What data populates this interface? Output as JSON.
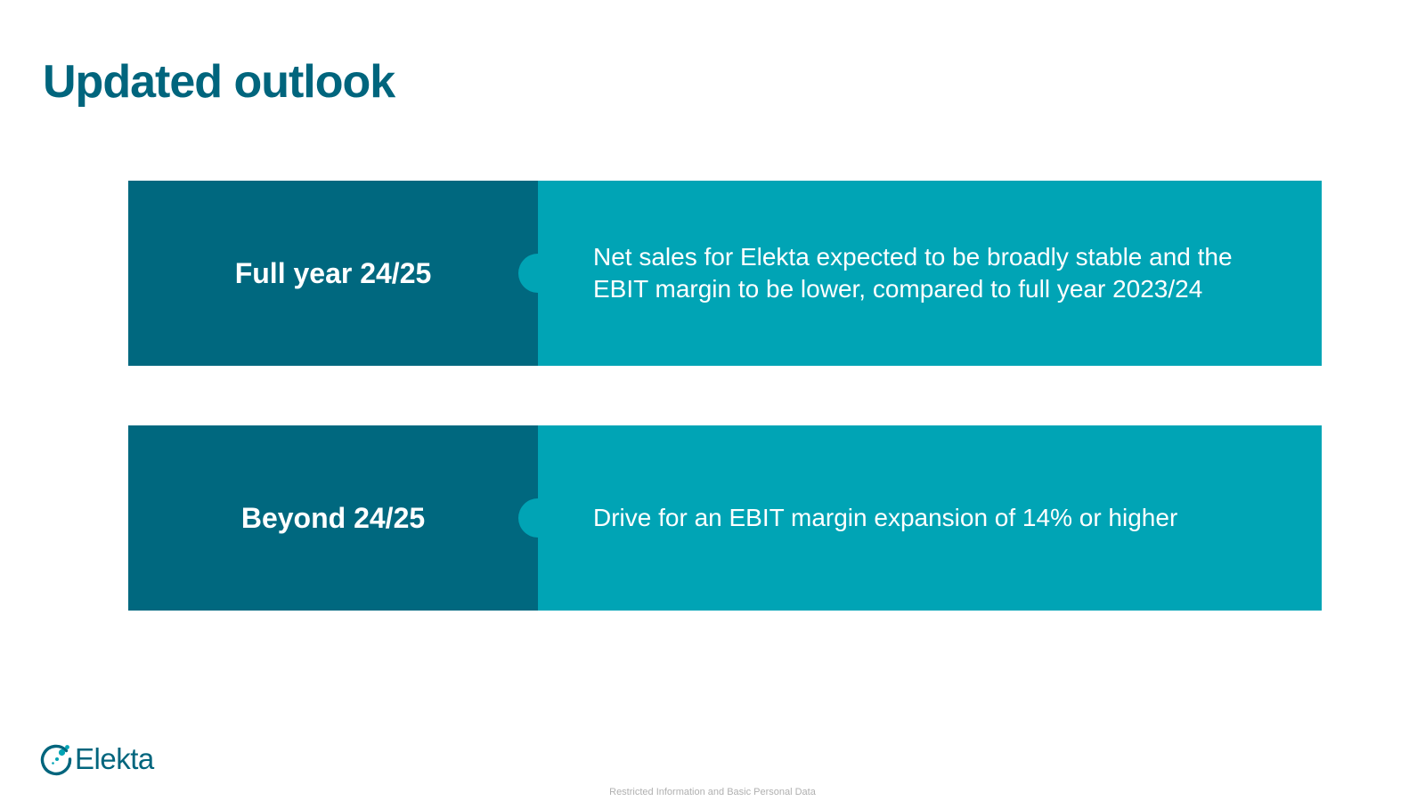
{
  "page": {
    "title": "Updated outlook"
  },
  "outlook": {
    "rows": [
      {
        "label": "Full year 24/25",
        "text": "Net sales for Elekta expected to be broadly stable and the EBIT margin to be lower, compared to full year 2023/24"
      },
      {
        "label": "Beyond 24/25",
        "text": "Drive for an EBIT margin expansion of 14% or higher"
      }
    ]
  },
  "footer": {
    "logo_text": "Elekta",
    "classification": "Restricted Information and Basic Personal Data"
  },
  "colors": {
    "title": "#00657d",
    "label_box": "#00687f",
    "text_box": "#00a4b5",
    "footer_text": "#b0b0b0"
  },
  "icons": {
    "logo": "elekta-logo-icon"
  }
}
